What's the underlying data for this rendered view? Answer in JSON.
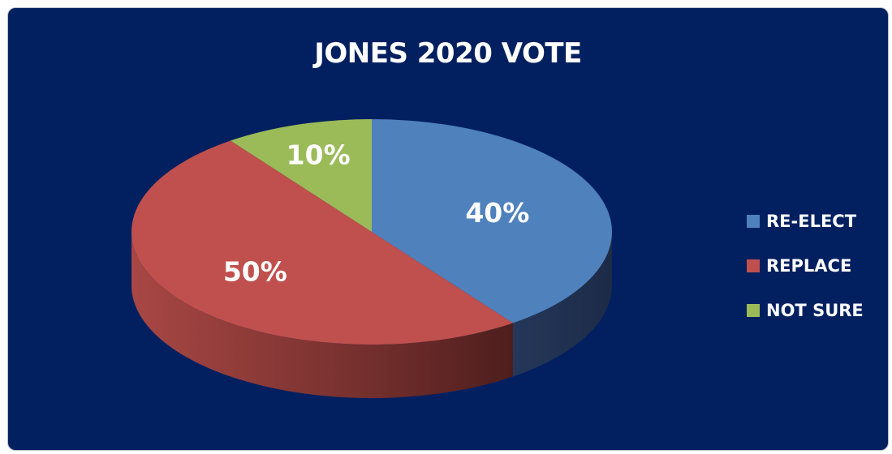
{
  "chart_data": {
    "type": "pie",
    "title": "JONES 2020 VOTE",
    "categories": [
      "RE-ELECT",
      "REPLACE",
      "NOT SURE"
    ],
    "values": [
      40,
      50,
      10
    ],
    "labels": [
      "40%",
      "50%",
      "10%"
    ],
    "colors": [
      "#4f81bd",
      "#c0504d",
      "#9bbb59"
    ],
    "legend_position": "right",
    "background": "#022060"
  }
}
